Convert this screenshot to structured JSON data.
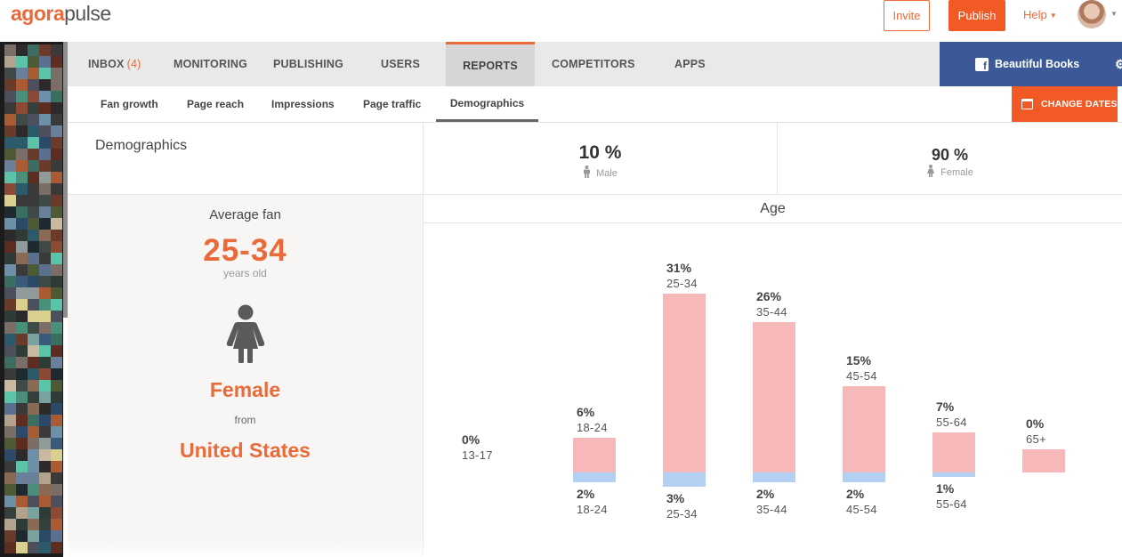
{
  "app": {
    "logo_primary": "agora",
    "logo_secondary": "pulse",
    "invite_label": "Invite",
    "publish_label": "Publish",
    "help_label": "Help"
  },
  "colors": {
    "accent": "#e96b3a",
    "publish": "#f15a24",
    "facebook": "#3b5998",
    "female_bar": "#f6b8b8",
    "male_bar": "#b3cff1"
  },
  "nav": {
    "items": [
      {
        "label": "INBOX",
        "count": "(4)"
      },
      {
        "label": "MONITORING"
      },
      {
        "label": "PUBLISHING"
      },
      {
        "label": "USERS"
      },
      {
        "label": "REPORTS",
        "active": true
      },
      {
        "label": "COMPETITORS"
      },
      {
        "label": "APPS"
      }
    ],
    "page_name": "Beautiful Books",
    "page_icon": "facebook-icon"
  },
  "subnav": {
    "items": [
      {
        "label": "Fan growth"
      },
      {
        "label": "Page reach"
      },
      {
        "label": "Impressions"
      },
      {
        "label": "Page traffic"
      },
      {
        "label": "Demographics",
        "active": true
      }
    ],
    "change_dates_label": "CHANGE DATES"
  },
  "demographics": {
    "title": "Demographics",
    "male_pct": "10 %",
    "male_label": "Male",
    "female_pct": "90 %",
    "female_label": "Female"
  },
  "average_fan": {
    "title": "Average fan",
    "age": "25-34",
    "age_unit": "years old",
    "gender": "Female",
    "from_label": "from",
    "country": "United States"
  },
  "age_chart": {
    "title": "Age"
  },
  "chart_data": {
    "type": "bar",
    "title": "Age",
    "categories": [
      "13-17",
      "18-24",
      "25-34",
      "35-44",
      "45-54",
      "55-64",
      "65+"
    ],
    "series": [
      {
        "values": [
          0,
          6,
          31,
          26,
          15,
          7,
          0
        ],
        "color": "#f6b8b8"
      },
      {
        "values": [
          0,
          2,
          3,
          2,
          2,
          1,
          0
        ],
        "color": "#b3cff1"
      }
    ],
    "top_labels": [
      {
        "pct": "0%",
        "cat": "13-17"
      },
      {
        "pct": "6%",
        "cat": "18-24"
      },
      {
        "pct": "31%",
        "cat": "25-34"
      },
      {
        "pct": "26%",
        "cat": "35-44"
      },
      {
        "pct": "15%",
        "cat": "45-54"
      },
      {
        "pct": "7%",
        "cat": "55-64"
      },
      {
        "pct": "0%",
        "cat": "65+"
      }
    ],
    "bottom_labels": [
      null,
      {
        "pct": "2%",
        "cat": "18-24"
      },
      {
        "pct": "3%",
        "cat": "25-34"
      },
      {
        "pct": "2%",
        "cat": "35-44"
      },
      {
        "pct": "2%",
        "cat": "45-54"
      },
      {
        "pct": "1%",
        "cat": "55-64"
      },
      null
    ]
  }
}
